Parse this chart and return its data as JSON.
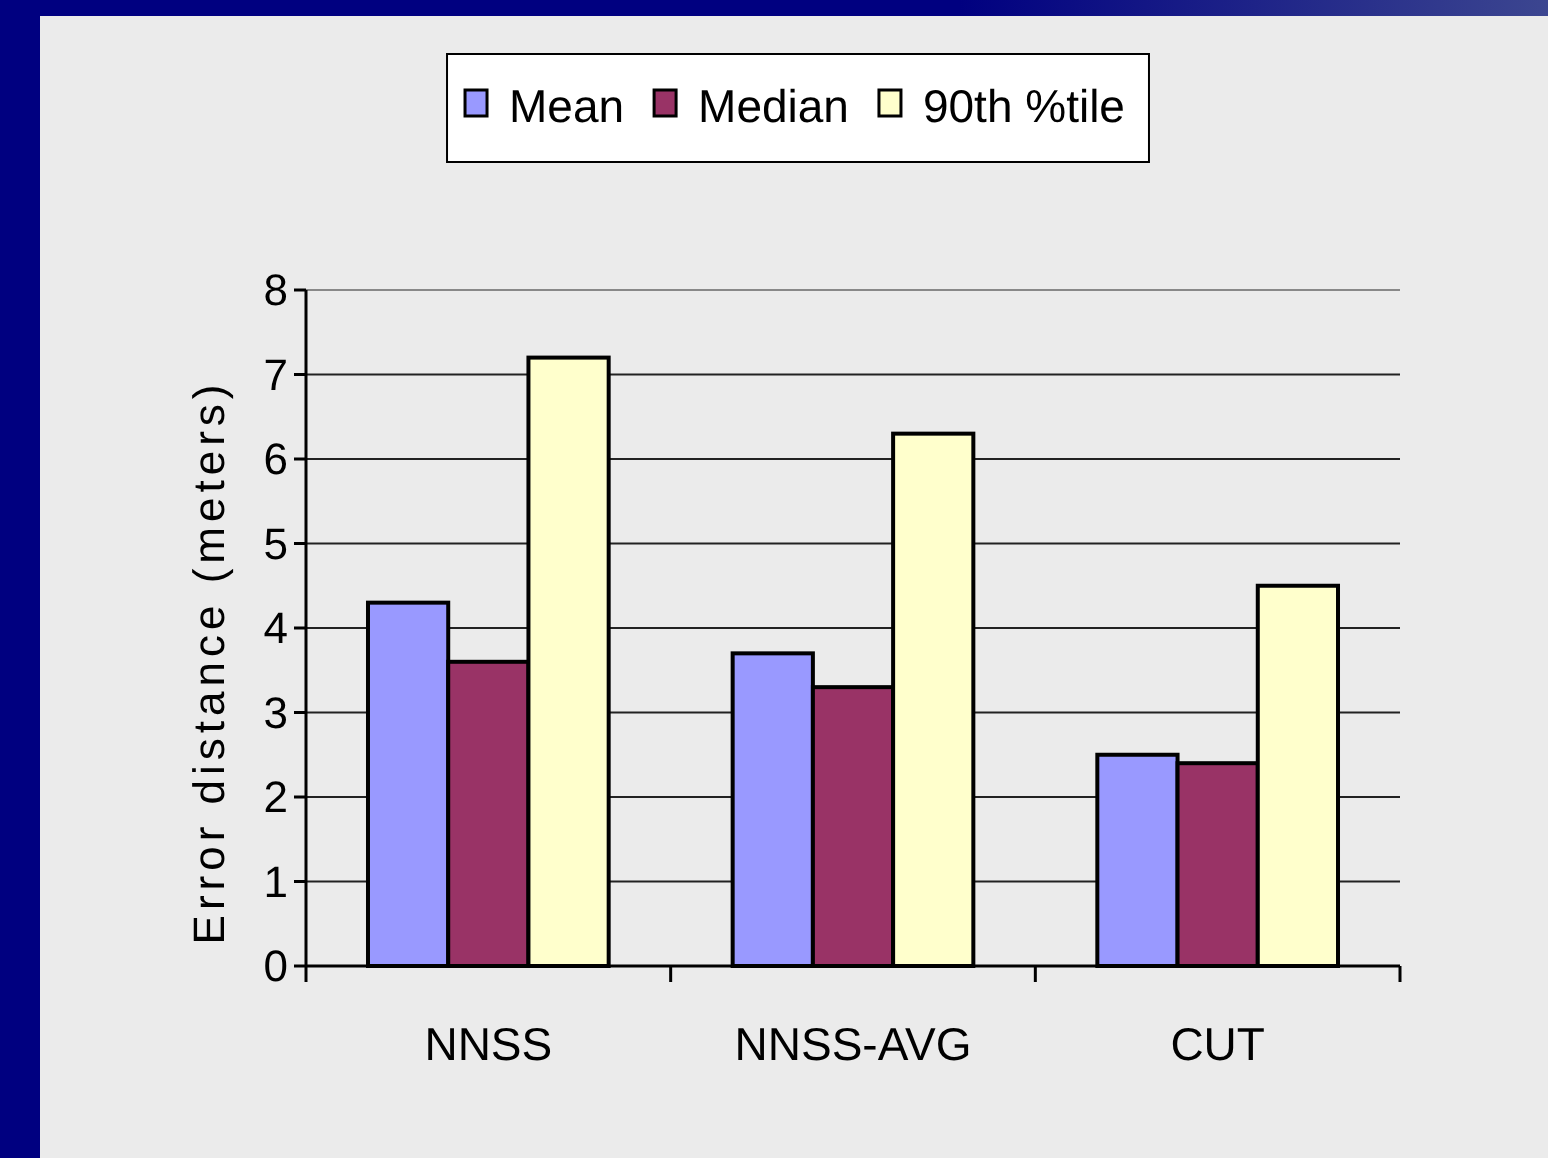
{
  "chart_data": {
    "type": "bar",
    "ylabel": "Error distance (meters)",
    "categories": [
      "NNSS",
      "NNSS-AVG",
      "CUT"
    ],
    "series": [
      {
        "name": "Mean",
        "color": "#9999ff",
        "values": [
          4.3,
          3.7,
          2.5
        ]
      },
      {
        "name": "Median",
        "color": "#993366",
        "values": [
          3.6,
          3.3,
          2.4
        ]
      },
      {
        "name": "90th %tile",
        "color": "#ffffcc",
        "values": [
          7.2,
          6.3,
          4.5
        ]
      }
    ],
    "ylim": [
      0,
      8
    ],
    "yticks": [
      0,
      1,
      2,
      3,
      4,
      5,
      6,
      7,
      8
    ],
    "grid": "y",
    "legend": "top"
  }
}
